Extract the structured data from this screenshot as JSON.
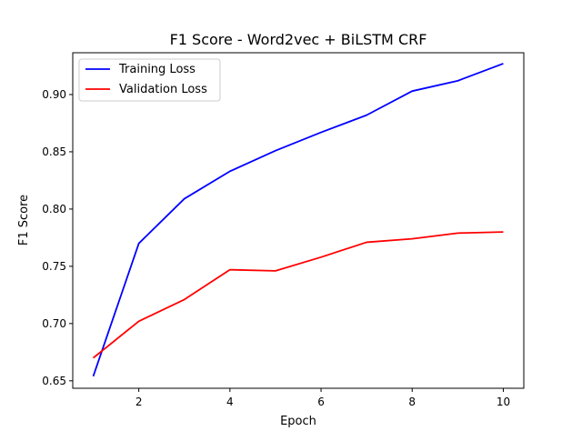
{
  "chart_data": {
    "type": "line",
    "title": "F1 Score - Word2vec + BiLSTM CRF",
    "xlabel": "Epoch",
    "ylabel": "F1 Score",
    "xlim": [
      0.55,
      10.45
    ],
    "ylim": [
      0.6435,
      0.9365
    ],
    "x_ticks": [
      2,
      4,
      6,
      8,
      10
    ],
    "y_ticks": [
      0.65,
      0.7,
      0.75,
      0.8,
      0.85,
      0.9
    ],
    "x_tick_labels": [
      "2",
      "4",
      "6",
      "8",
      "10"
    ],
    "y_tick_labels": [
      "0.65",
      "0.70",
      "0.75",
      "0.80",
      "0.85",
      "0.90"
    ],
    "grid": false,
    "legend_position": "upper-left",
    "x": [
      1,
      2,
      3,
      4,
      5,
      6,
      7,
      8,
      9,
      10
    ],
    "series": [
      {
        "name": "Training Loss",
        "color": "#0000ff",
        "values": [
          0.654,
          0.77,
          0.809,
          0.833,
          0.851,
          0.867,
          0.882,
          0.903,
          0.912,
          0.927
        ]
      },
      {
        "name": "Validation Loss",
        "color": "#ff0000",
        "values": [
          0.67,
          0.702,
          0.721,
          0.747,
          0.746,
          0.758,
          0.771,
          0.774,
          0.779,
          0.78
        ]
      }
    ]
  }
}
